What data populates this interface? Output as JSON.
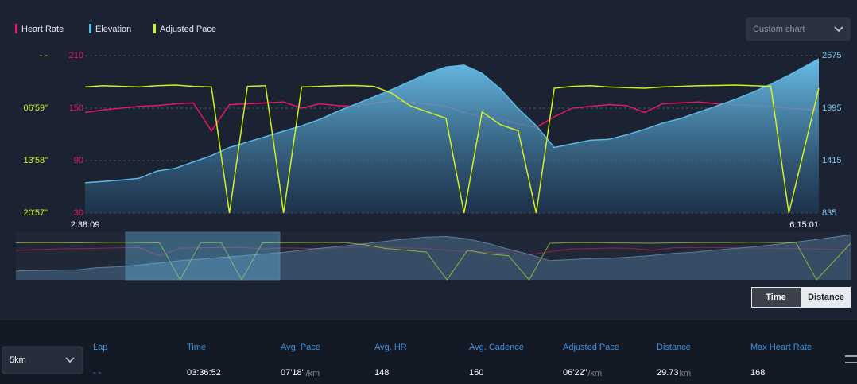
{
  "chart_data": {
    "type": "line",
    "legend": "top-left",
    "x": [
      9489,
      9809,
      10129,
      10449,
      10769,
      11089,
      11409,
      11729,
      12049,
      12369,
      12689,
      13009,
      13329,
      13649,
      13969,
      14289,
      14609,
      14929,
      15249,
      15569,
      15889,
      16209,
      16529,
      16849,
      17169,
      17489,
      17809,
      18129,
      18449,
      18769,
      19089,
      19409,
      19729,
      20049,
      20369,
      20689,
      21009,
      21329,
      21649,
      21969,
      22501
    ],
    "xlim": [
      9489,
      22501
    ],
    "xticks": [
      {
        "value": 9489,
        "label": "2:38:09"
      },
      {
        "value": 22501,
        "label": "6:15:01"
      }
    ],
    "ylim": [
      30,
      210
    ],
    "yticks": [
      30,
      90,
      150,
      210
    ],
    "y2lim": [
      835,
      2575
    ],
    "y2ticks": [
      835,
      1415,
      1995,
      2575
    ],
    "y3lim": [
      1257,
      0
    ],
    "y3ticks": [
      {
        "value": 0,
        "label": "- -"
      },
      {
        "value": 419,
        "label": "06'59\""
      },
      {
        "value": 838,
        "label": "13'58\""
      },
      {
        "value": 1257,
        "label": "20'57\""
      }
    ],
    "grid": true,
    "series": [
      {
        "name": "Heart Rate",
        "color": "#e8195f",
        "axis": "y",
        "values": [
          145,
          148,
          150,
          152,
          153,
          155,
          156,
          124,
          154,
          155,
          156,
          157,
          150,
          155,
          153,
          152,
          156,
          158,
          157,
          155,
          152,
          145,
          140,
          138,
          132,
          128,
          140,
          150,
          152,
          154,
          153,
          145,
          155,
          156,
          157,
          155,
          154,
          153,
          152,
          150,
          147
        ]
      },
      {
        "name": "Elevation",
        "color": "#5ab9e8",
        "axis": "y2",
        "area": true,
        "values": [
          1170,
          1185,
          1200,
          1220,
          1300,
          1330,
          1400,
          1470,
          1560,
          1620,
          1680,
          1740,
          1800,
          1870,
          1960,
          2040,
          2120,
          2200,
          2290,
          2380,
          2450,
          2470,
          2380,
          2210,
          1990,
          1800,
          1560,
          1600,
          1640,
          1650,
          1700,
          1760,
          1830,
          1880,
          1950,
          2020,
          2090,
          2170,
          2260,
          2360,
          2540
        ]
      },
      {
        "name": "Adjusted Pace",
        "color": "#d4f01e",
        "axis": "y3",
        "values": [
          250,
          240,
          245,
          250,
          240,
          235,
          245,
          250,
          1257,
          245,
          240,
          1257,
          250,
          245,
          240,
          238,
          245,
          300,
          400,
          450,
          500,
          1257,
          450,
          550,
          600,
          1257,
          260,
          245,
          240,
          250,
          255,
          260,
          250,
          245,
          240,
          238,
          235,
          240,
          245,
          1257,
          260
        ]
      }
    ]
  },
  "controls": {
    "chart_select": "Custom chart",
    "modes": [
      "Time",
      "Distance"
    ],
    "selected_mode": "Time",
    "lap_select": "5km"
  },
  "table": {
    "headers": [
      "Lap",
      "Time",
      "Avg. Pace",
      "Avg. HR",
      "Avg. Cadence",
      "Adjusted Pace",
      "Distance",
      "Max Heart Rate"
    ],
    "row": [
      "- -",
      "03:36:52",
      {
        "value": "07'18\"",
        "unit": "/km"
      },
      "148",
      "150",
      {
        "value": "06'22\"",
        "unit": "/km"
      },
      {
        "value": "29.73",
        "unit": "km"
      },
      "168"
    ]
  }
}
